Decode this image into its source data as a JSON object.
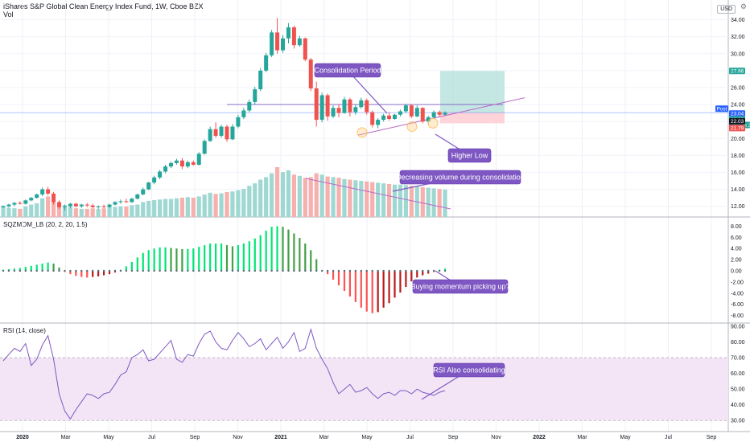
{
  "header": {
    "title": "iShares S&P Global Clean Energy Index Fund, 1W, Cboe BZX",
    "volume_label": "Vol",
    "currency": "USD",
    "sqz_label": "SQZMOM_LB (20, 2, 20, 1.5)",
    "rsi_label": "RSI (14, close)"
  },
  "price_axis": {
    "ticks": [
      "34.00",
      "32.00",
      "30.00",
      "28.00",
      "26.00",
      "24.00",
      "22.00",
      "20.00",
      "18.00",
      "16.00",
      "14.00",
      "12.00"
    ]
  },
  "sqz_axis": {
    "ticks": [
      "8.00",
      "6.00",
      "4.00",
      "2.00",
      "0.00",
      "-2.00",
      "-4.00",
      "-6.00",
      "-8.00"
    ]
  },
  "rsi_axis": {
    "ticks": [
      "90.00",
      "80.00",
      "70.00",
      "60.00",
      "50.00",
      "40.00",
      "30.00"
    ]
  },
  "time_axis": {
    "ticks": [
      "2020",
      "Mar",
      "May",
      "Jul",
      "Sep",
      "Nov",
      "2021",
      "Mar",
      "May",
      "Jul",
      "Sep",
      "Nov",
      "2022",
      "Mar",
      "May",
      "Jul",
      "Sep"
    ]
  },
  "price_tags": [
    {
      "text": "27.96",
      "color": "#26a69a"
    },
    {
      "text": "Post",
      "color": "#2962ff"
    },
    {
      "text": "23.04",
      "color": "#2962ff"
    },
    {
      "text": "22.92",
      "color": "#26a69a"
    },
    {
      "text": "2d 19h 36",
      "color": "#26a69a"
    },
    {
      "text": "22.03",
      "color": "#131722"
    },
    {
      "text": "21.79",
      "color": "#ef5350"
    }
  ],
  "annotations": {
    "consolidation": "Consolidation Period",
    "higher_low": "Higher Low",
    "volume": "Decreasing volume during consolidation",
    "momentum": "Buying momentum picking up?",
    "rsi": "RSI Also consolidating"
  },
  "colors": {
    "up": "#26a69a",
    "down": "#ef5350",
    "callout": "#7e57c2",
    "rsi_line": "#7e57c2",
    "rsi_band": "#f3e5f5",
    "sqz_lime": "#00e676",
    "sqz_green": "#43a047",
    "sqz_red": "#ff5252",
    "sqz_maroon": "#b71c1c"
  },
  "chart_data": [
    {
      "type": "candlestick",
      "title": "iShares S&P Global Clean Energy Index Fund, 1W, Cboe BZX",
      "interval": "1W",
      "x_start": "2020-01-03",
      "ylim": [
        11.5,
        35
      ],
      "ylabel": "USD",
      "ohlc": [
        [
          11.9,
          12.1,
          11.8,
          12.0
        ],
        [
          12.0,
          12.3,
          11.9,
          12.2
        ],
        [
          12.2,
          12.5,
          12.0,
          12.4
        ],
        [
          12.4,
          12.6,
          12.2,
          12.3
        ],
        [
          12.3,
          12.8,
          12.2,
          12.7
        ],
        [
          12.7,
          13.1,
          12.6,
          13.0
        ],
        [
          13.0,
          13.5,
          12.9,
          13.4
        ],
        [
          13.4,
          14.2,
          13.2,
          14.0
        ],
        [
          14.0,
          14.3,
          13.3,
          13.5
        ],
        [
          13.5,
          13.7,
          12.2,
          12.5
        ],
        [
          12.5,
          12.7,
          11.7,
          11.9
        ],
        [
          11.9,
          12.2,
          11.5,
          12.0
        ],
        [
          12.0,
          12.4,
          11.8,
          12.3
        ],
        [
          12.3,
          12.4,
          11.9,
          12.0
        ],
        [
          12.0,
          12.3,
          11.8,
          12.2
        ],
        [
          12.2,
          12.4,
          11.9,
          12.1
        ],
        [
          12.1,
          12.3,
          11.8,
          11.9
        ],
        [
          11.9,
          12.1,
          11.7,
          12.0
        ],
        [
          12.0,
          12.2,
          11.8,
          11.9
        ],
        [
          11.9,
          12.3,
          11.8,
          12.2
        ],
        [
          12.2,
          12.6,
          12.1,
          12.5
        ],
        [
          12.5,
          12.8,
          12.3,
          12.6
        ],
        [
          12.6,
          12.9,
          12.4,
          12.5
        ],
        [
          12.5,
          13.0,
          12.4,
          12.9
        ],
        [
          12.9,
          13.5,
          12.8,
          13.4
        ],
        [
          13.4,
          14.2,
          13.3,
          14.0
        ],
        [
          14.0,
          14.9,
          13.9,
          14.8
        ],
        [
          14.8,
          15.6,
          14.6,
          15.4
        ],
        [
          15.4,
          16.3,
          15.2,
          16.1
        ],
        [
          16.1,
          16.9,
          15.9,
          16.7
        ],
        [
          16.7,
          17.3,
          16.5,
          17.1
        ],
        [
          17.1,
          17.6,
          16.9,
          17.4
        ],
        [
          17.4,
          17.7,
          16.4,
          16.7
        ],
        [
          16.7,
          17.4,
          16.5,
          17.2
        ],
        [
          17.2,
          17.4,
          16.8,
          16.9
        ],
        [
          16.9,
          18.4,
          16.8,
          18.2
        ],
        [
          18.2,
          19.9,
          18.1,
          19.7
        ],
        [
          19.7,
          21.4,
          19.6,
          21.1
        ],
        [
          21.1,
          21.9,
          20.1,
          20.3
        ],
        [
          20.3,
          21.6,
          20.1,
          21.4
        ],
        [
          21.4,
          21.6,
          19.6,
          19.9
        ],
        [
          19.9,
          21.7,
          19.8,
          21.4
        ],
        [
          21.4,
          22.8,
          21.2,
          22.5
        ],
        [
          22.5,
          23.6,
          22.3,
          23.3
        ],
        [
          23.3,
          24.6,
          23.1,
          24.3
        ],
        [
          24.3,
          26.1,
          24.0,
          25.8
        ],
        [
          25.8,
          28.3,
          25.6,
          28.0
        ],
        [
          28.0,
          30.1,
          27.8,
          29.8
        ],
        [
          29.8,
          32.8,
          29.6,
          32.5
        ],
        [
          32.5,
          34.2,
          30.0,
          30.4
        ],
        [
          30.4,
          32.2,
          30.1,
          31.8
        ],
        [
          31.8,
          33.6,
          31.2,
          33.1
        ],
        [
          33.1,
          33.3,
          30.6,
          31.0
        ],
        [
          31.0,
          32.1,
          30.8,
          31.8
        ],
        [
          31.8,
          31.9,
          29.1,
          29.3
        ],
        [
          29.3,
          29.5,
          25.6,
          25.9
        ],
        [
          25.9,
          26.7,
          21.4,
          22.2
        ],
        [
          22.2,
          25.4,
          21.9,
          25.1
        ],
        [
          25.1,
          25.3,
          22.1,
          22.6
        ],
        [
          22.6,
          23.9,
          22.4,
          23.6
        ],
        [
          23.6,
          24.0,
          22.5,
          23.0
        ],
        [
          23.0,
          24.9,
          22.9,
          24.6
        ],
        [
          24.6,
          24.8,
          22.6,
          23.1
        ],
        [
          23.1,
          24.0,
          22.8,
          23.7
        ],
        [
          23.7,
          24.8,
          23.5,
          24.5
        ],
        [
          24.5,
          24.7,
          22.8,
          23.1
        ],
        [
          23.1,
          23.3,
          21.3,
          21.6
        ],
        [
          21.6,
          22.4,
          21.2,
          22.2
        ],
        [
          22.2,
          22.9,
          22.0,
          22.7
        ],
        [
          22.7,
          23.1,
          22.1,
          22.3
        ],
        [
          22.3,
          22.9,
          22.2,
          22.8
        ],
        [
          22.8,
          23.4,
          22.6,
          23.2
        ],
        [
          23.2,
          24.1,
          23.0,
          23.9
        ],
        [
          23.9,
          24.0,
          22.4,
          22.6
        ],
        [
          22.6,
          23.9,
          22.5,
          23.6
        ],
        [
          23.6,
          23.7,
          21.8,
          22.0
        ],
        [
          22.0,
          22.7,
          21.7,
          22.5
        ],
        [
          22.5,
          23.3,
          22.3,
          23.1
        ],
        [
          23.1,
          23.3,
          22.6,
          22.8
        ],
        [
          22.8,
          23.2,
          22.7,
          23.04
        ]
      ]
    },
    {
      "type": "bar",
      "title": "Vol",
      "values": [
        18,
        15,
        14,
        13,
        17,
        20,
        22,
        30,
        33,
        26,
        22,
        19,
        16,
        14,
        13,
        13,
        14,
        13,
        14,
        15,
        16,
        17,
        17,
        19,
        20,
        24,
        26,
        27,
        28,
        29,
        29,
        30,
        31,
        32,
        31,
        33,
        36,
        39,
        37,
        38,
        40,
        41,
        43,
        45,
        50,
        54,
        60,
        64,
        70,
        80,
        72,
        75,
        68,
        66,
        63,
        64,
        70,
        68,
        65,
        64,
        63,
        61,
        60,
        59,
        58,
        57,
        56,
        55,
        54,
        53,
        52,
        52,
        51,
        50,
        49,
        48,
        47,
        46,
        45,
        44
      ]
    },
    {
      "type": "bar",
      "title": "SQZMOM_LB (20, 2, 20, 1.5)",
      "ylim": [
        -8.5,
        8.5
      ],
      "values": [
        0.2,
        0.3,
        0.4,
        0.5,
        0.7,
        0.9,
        1.1,
        1.3,
        1.5,
        1.3,
        0.6,
        -0.2,
        -0.6,
        -0.9,
        -1.1,
        -1.2,
        -1.1,
        -1.0,
        -0.8,
        -0.6,
        -0.3,
        0.2,
        0.8,
        1.6,
        2.4,
        3.2,
        3.7,
        4.0,
        4.2,
        4.2,
        4.1,
        4.0,
        3.9,
        3.9,
        4.0,
        4.3,
        4.6,
        4.9,
        4.9,
        4.9,
        4.6,
        4.4,
        4.6,
        4.9,
        5.3,
        5.8,
        6.4,
        7.2,
        7.9,
        8.0,
        7.9,
        7.4,
        6.7,
        5.9,
        4.9,
        3.7,
        2.1,
        0.1,
        -0.6,
        -1.6,
        -2.6,
        -3.6,
        -4.6,
        -5.6,
        -6.6,
        -7.3,
        -7.6,
        -7.4,
        -6.6,
        -5.8,
        -4.8,
        -3.9,
        -2.9,
        -1.9,
        -1.2,
        -0.8,
        -0.5,
        -0.2,
        0.2,
        0.4
      ]
    },
    {
      "type": "line",
      "title": "RSI (14, close)",
      "ylim": [
        25,
        90
      ],
      "bands": [
        30,
        70
      ],
      "values": [
        68,
        72,
        76,
        74,
        79,
        65,
        69,
        78,
        84,
        69,
        47,
        36,
        31,
        37,
        42,
        47,
        46,
        44,
        47,
        48,
        53,
        59,
        61,
        70,
        72,
        75,
        68,
        69,
        73,
        77,
        81,
        69,
        67,
        72,
        71,
        79,
        85,
        87,
        80,
        76,
        75,
        81,
        86,
        82,
        77,
        79,
        82,
        75,
        79,
        83,
        76,
        80,
        86,
        74,
        76,
        88,
        76,
        69,
        63,
        54,
        47,
        50,
        53,
        48,
        49,
        51,
        47,
        44,
        47,
        48,
        46,
        49,
        49,
        47,
        50,
        48,
        47,
        46,
        48,
        49
      ]
    }
  ]
}
